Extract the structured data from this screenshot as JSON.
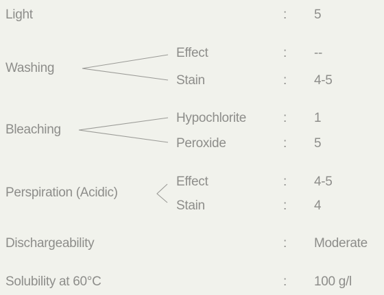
{
  "separator": ":",
  "rows": [
    {
      "label": "Light",
      "value": "5"
    },
    {
      "label": "Washing",
      "items": [
        {
          "label": "Effect",
          "value": "--"
        },
        {
          "label": "Stain",
          "value": "4-5"
        }
      ]
    },
    {
      "label": "Bleaching",
      "items": [
        {
          "label": "Hypochlorite",
          "value": "1"
        },
        {
          "label": "Peroxide",
          "value": "5"
        }
      ]
    },
    {
      "label": "Perspiration (Acidic)",
      "items": [
        {
          "label": "Effect",
          "value": "4-5"
        },
        {
          "label": "Stain",
          "value": "4"
        }
      ]
    },
    {
      "label": "Dischargeability",
      "value": "Moderate"
    },
    {
      "label": "Solubility at 60°C",
      "value": "100 g/l"
    }
  ]
}
